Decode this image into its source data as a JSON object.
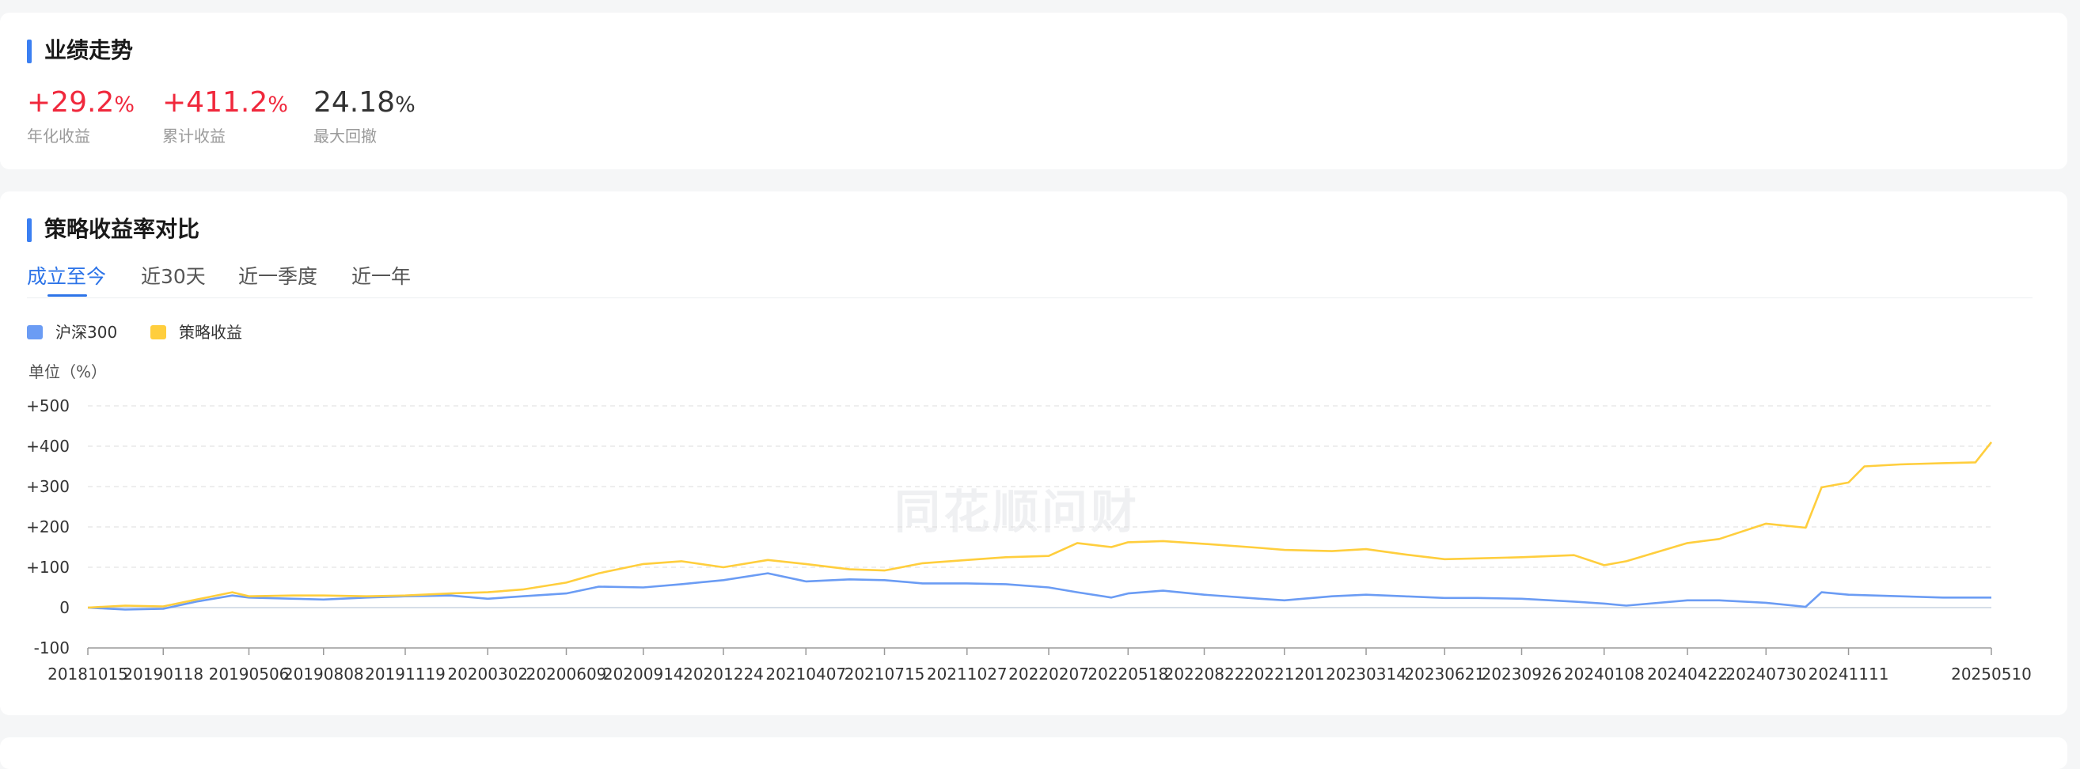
{
  "performance": {
    "title": "业绩走势",
    "metrics": [
      {
        "value": "+29.2",
        "unit": "%",
        "label": "年化收益",
        "color": "#f0283c"
      },
      {
        "value": "+411.2",
        "unit": "%",
        "label": "累计收益",
        "color": "#f0283c"
      },
      {
        "value": "24.18",
        "unit": "%",
        "label": "最大回撤",
        "color": "#333333"
      }
    ]
  },
  "comparison": {
    "title": "策略收益率对比",
    "tabs": [
      {
        "label": "成立至今",
        "active": true
      },
      {
        "label": "近30天",
        "active": false
      },
      {
        "label": "近一季度",
        "active": false
      },
      {
        "label": "近一年",
        "active": false
      }
    ],
    "unit_label": "单位（%）",
    "watermark": "同花顺问财"
  },
  "colors": {
    "accent": "#2d74e8",
    "benchmark": "#6b9cf4",
    "strategy": "#ffce3d",
    "positive": "#f0283c"
  },
  "chart_data": {
    "type": "line",
    "title": "",
    "ylabel": "单位（%）",
    "ylim": [
      -100,
      500
    ],
    "yticks": [
      "+500",
      "+400",
      "+300",
      "+200",
      "+100",
      "0",
      "-100"
    ],
    "ytick_values": [
      500,
      400,
      300,
      200,
      100,
      0,
      -100
    ],
    "xtick_labels": [
      "20181015",
      "20190118",
      "20190506",
      "20190808",
      "20191119",
      "20200302",
      "20200609",
      "20200914",
      "20201224",
      "20210407",
      "20210715",
      "20211027",
      "20220207",
      "20220518",
      "20220822",
      "20221201",
      "20230314",
      "20230621",
      "20230926",
      "20240108",
      "20240422",
      "20240730",
      "20241111",
      "20250510"
    ],
    "grid": true,
    "legend_position": "top-left",
    "series": [
      {
        "name": "沪深300",
        "color": "#6b9cf4",
        "x": [
          "20181015",
          "20181201",
          "20190118",
          "20190301",
          "20190415",
          "20190506",
          "20190701",
          "20190808",
          "20191001",
          "20191119",
          "20200115",
          "20200302",
          "20200415",
          "20200609",
          "20200720",
          "20200914",
          "20201101",
          "20201224",
          "20210218",
          "20210407",
          "20210601",
          "20210715",
          "20210901",
          "20211027",
          "20211215",
          "20220207",
          "20220315",
          "20220427",
          "20220518",
          "20220701",
          "20220822",
          "20221031",
          "20221201",
          "20230130",
          "20230314",
          "20230501",
          "20230621",
          "20230801",
          "20230926",
          "20231201",
          "20240108",
          "20240205",
          "20240422",
          "20240601",
          "20240730",
          "20240918",
          "20241008",
          "20241111",
          "20250115",
          "20250310",
          "20250510"
        ],
        "values": [
          0,
          -5,
          -3,
          15,
          30,
          25,
          22,
          20,
          25,
          28,
          30,
          22,
          28,
          35,
          52,
          50,
          58,
          68,
          85,
          65,
          70,
          68,
          60,
          60,
          58,
          50,
          38,
          25,
          35,
          42,
          32,
          22,
          18,
          28,
          32,
          28,
          24,
          24,
          22,
          15,
          10,
          5,
          18,
          18,
          12,
          2,
          38,
          32,
          28,
          25,
          25
        ]
      },
      {
        "name": "策略收益",
        "color": "#ffce3d",
        "x": [
          "20181015",
          "20181201",
          "20190118",
          "20190301",
          "20190415",
          "20190506",
          "20190701",
          "20190808",
          "20191001",
          "20191119",
          "20200115",
          "20200302",
          "20200415",
          "20200609",
          "20200720",
          "20200914",
          "20201101",
          "20201224",
          "20210218",
          "20210407",
          "20210601",
          "20210715",
          "20210901",
          "20211027",
          "20211215",
          "20220207",
          "20220315",
          "20220427",
          "20220518",
          "20220701",
          "20220822",
          "20221031",
          "20221201",
          "20230130",
          "20230314",
          "20230501",
          "20230621",
          "20230801",
          "20230926",
          "20231201",
          "20240108",
          "20240205",
          "20240422",
          "20240601",
          "20240730",
          "20240918",
          "20241008",
          "20241111",
          "20241201",
          "20250115",
          "20250310",
          "20250420",
          "20250510"
        ],
        "values": [
          0,
          5,
          3,
          20,
          38,
          28,
          30,
          30,
          28,
          30,
          35,
          38,
          45,
          62,
          85,
          108,
          115,
          100,
          118,
          108,
          95,
          92,
          110,
          118,
          125,
          128,
          160,
          150,
          162,
          165,
          158,
          148,
          143,
          140,
          145,
          132,
          120,
          122,
          125,
          130,
          105,
          115,
          160,
          170,
          208,
          198,
          298,
          310,
          350,
          355,
          358,
          360,
          410
        ]
      }
    ]
  }
}
